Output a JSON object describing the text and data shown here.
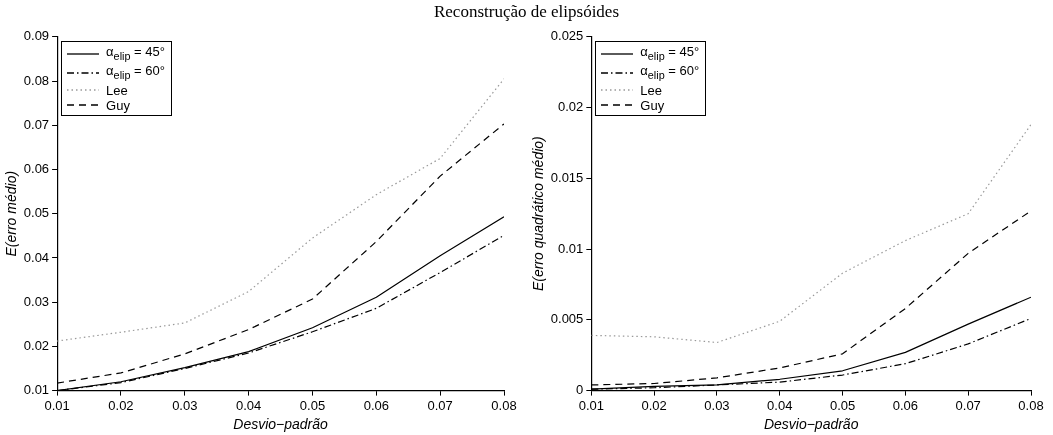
{
  "chart_data": [
    {
      "type": "line",
      "title": "Reconstrução de elipsóides",
      "xlabel": "Desvio−padrão",
      "ylabel": "E(erro médio)",
      "x": [
        0.01,
        0.02,
        0.03,
        0.04,
        0.05,
        0.06,
        0.07,
        0.08
      ],
      "xlim": [
        0.01,
        0.08
      ],
      "xticks": [
        0.01,
        0.02,
        0.03,
        0.04,
        0.05,
        0.06,
        0.07,
        0.08
      ],
      "ylim": [
        0.01,
        0.09
      ],
      "yticks": [
        0.01,
        0.02,
        0.03,
        0.04,
        0.05,
        0.06,
        0.07,
        0.08,
        0.09
      ],
      "grid": false,
      "legend": "top left",
      "marker": "none",
      "series": [
        {
          "name": "α$_{elip}$ = 45°",
          "color": "#000000",
          "line_style": "solid",
          "values": [
            0.01,
            0.012,
            0.0152,
            0.0188,
            0.0242,
            0.0311,
            0.0405,
            0.0493
          ]
        },
        {
          "name": "α$_{elip}$ = 60°",
          "color": "#000000",
          "line_style": "dashdot",
          "values": [
            0.01,
            0.0118,
            0.015,
            0.0185,
            0.0233,
            0.0286,
            0.0367,
            0.0451
          ]
        },
        {
          "name": "Lee",
          "color": "#999999",
          "line_style": "dotted",
          "values": [
            0.0212,
            0.0232,
            0.0253,
            0.0324,
            0.0445,
            0.0543,
            0.0625,
            0.0805
          ]
        },
        {
          "name": "Guy",
          "color": "#000000",
          "line_style": "dashed",
          "values": [
            0.0117,
            0.014,
            0.0183,
            0.0238,
            0.0307,
            0.0437,
            0.0585,
            0.0703
          ]
        }
      ]
    },
    {
      "type": "line",
      "xlabel": "Desvio−padrão",
      "ylabel": "E(erro quadrático médio)",
      "x": [
        0.01,
        0.02,
        0.03,
        0.04,
        0.05,
        0.06,
        0.07,
        0.08
      ],
      "xlim": [
        0.01,
        0.08
      ],
      "xticks": [
        0.01,
        0.02,
        0.03,
        0.04,
        0.05,
        0.06,
        0.07,
        0.08
      ],
      "ylim": [
        0,
        0.025
      ],
      "yticks": [
        0,
        0.005,
        0.01,
        0.015,
        0.02,
        0.025
      ],
      "grid": false,
      "legend": "top left",
      "marker": "none",
      "series": [
        {
          "name": "α$_{elip}$ = 45°",
          "color": "#000000",
          "line_style": "solid",
          "values": [
            0.0001,
            0.0003,
            0.0004,
            0.0008,
            0.0014,
            0.0027,
            0.0047,
            0.0066
          ]
        },
        {
          "name": "α$_{elip}$ = 60°",
          "color": "#000000",
          "line_style": "dashdot",
          "values": [
            0.0001,
            0.0002,
            0.0004,
            0.0006,
            0.0011,
            0.0019,
            0.0033,
            0.0051
          ]
        },
        {
          "name": "Lee",
          "color": "#999999",
          "line_style": "dotted",
          "values": [
            0.0039,
            0.0038,
            0.0034,
            0.0049,
            0.0083,
            0.0106,
            0.0125,
            0.0188
          ]
        },
        {
          "name": "Guy",
          "color": "#000000",
          "line_style": "dashed",
          "values": [
            0.0004,
            0.0005,
            0.0009,
            0.0016,
            0.0026,
            0.0058,
            0.0097,
            0.0127
          ]
        }
      ]
    }
  ]
}
